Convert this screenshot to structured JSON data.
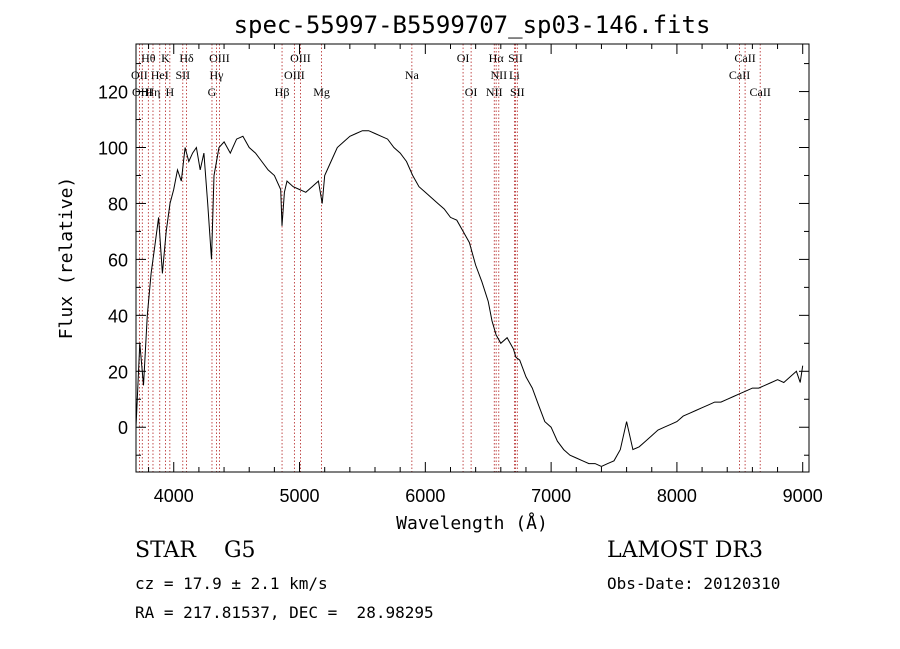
{
  "chart_data": {
    "type": "line",
    "title": "spec-55997-B5599707_sp03-146.fits",
    "xlabel": "Wavelength (Å)",
    "ylabel": "Flux (relative)",
    "xlim": [
      3700,
      9050
    ],
    "ylim": [
      -16,
      137
    ],
    "xticks": [
      4000,
      5000,
      6000,
      7000,
      8000,
      9000
    ],
    "yticks": [
      0,
      20,
      40,
      60,
      80,
      100,
      120
    ],
    "series": [
      {
        "name": "flux",
        "x": [
          3700,
          3730,
          3760,
          3790,
          3820,
          3850,
          3880,
          3910,
          3940,
          3970,
          4000,
          4030,
          4060,
          4090,
          4120,
          4150,
          4180,
          4210,
          4240,
          4270,
          4300,
          4320,
          4340,
          4360,
          4400,
          4450,
          4500,
          4550,
          4600,
          4650,
          4700,
          4750,
          4800,
          4850,
          4861,
          4880,
          4900,
          4950,
          5000,
          5050,
          5100,
          5150,
          5180,
          5200,
          5250,
          5300,
          5350,
          5400,
          5450,
          5500,
          5550,
          5600,
          5650,
          5700,
          5750,
          5800,
          5850,
          5900,
          5950,
          6000,
          6050,
          6100,
          6150,
          6200,
          6250,
          6300,
          6350,
          6400,
          6450,
          6500,
          6530,
          6563,
          6600,
          6650,
          6700,
          6720,
          6750,
          6800,
          6850,
          6900,
          6950,
          7000,
          7050,
          7100,
          7150,
          7200,
          7250,
          7300,
          7350,
          7400,
          7450,
          7500,
          7550,
          7600,
          7650,
          7700,
          7750,
          7800,
          7850,
          7900,
          7950,
          8000,
          8050,
          8100,
          8150,
          8200,
          8250,
          8300,
          8350,
          8400,
          8450,
          8500,
          8550,
          8600,
          8650,
          8700,
          8750,
          8800,
          8850,
          8900,
          8950,
          8980,
          9000
        ],
        "y": [
          0,
          30,
          15,
          40,
          55,
          65,
          75,
          55,
          70,
          80,
          85,
          92,
          88,
          100,
          95,
          98,
          100,
          92,
          98,
          80,
          60,
          90,
          95,
          100,
          102,
          98,
          103,
          104,
          100,
          98,
          95,
          92,
          90,
          85,
          72,
          84,
          88,
          86,
          85,
          84,
          86,
          88,
          80,
          90,
          95,
          100,
          102,
          104,
          105,
          106,
          106,
          105,
          104,
          103,
          100,
          98,
          95,
          90,
          86,
          84,
          82,
          80,
          78,
          75,
          74,
          70,
          66,
          58,
          52,
          45,
          38,
          33,
          30,
          32,
          28,
          25,
          24,
          18,
          14,
          8,
          2,
          0,
          -5,
          -8,
          -10,
          -11,
          -12,
          -13,
          -13,
          -14,
          -13,
          -12,
          -8,
          2,
          -8,
          -7,
          -5,
          -3,
          -1,
          0,
          1,
          2,
          4,
          5,
          6,
          7,
          8,
          9,
          9,
          10,
          11,
          12,
          13,
          14,
          14,
          15,
          16,
          17,
          16,
          18,
          20,
          16,
          22
        ]
      }
    ],
    "lines": [
      {
        "name": "Hθ",
        "x": 3798,
        "row": 1
      },
      {
        "name": "K",
        "x": 3934,
        "row": 1
      },
      {
        "name": "Hδ",
        "x": 4102,
        "row": 1
      },
      {
        "name": "OIII",
        "x": 4363,
        "row": 1
      },
      {
        "name": "OIII",
        "x": 5007,
        "row": 1
      },
      {
        "name": "OI",
        "x": 6300,
        "row": 1
      },
      {
        "name": "Hα",
        "x": 6563,
        "row": 1
      },
      {
        "name": "SII",
        "x": 6717,
        "row": 1
      },
      {
        "name": "CaII",
        "x": 8542,
        "row": 1
      },
      {
        "name": "OII",
        "x": 3727,
        "row": 2
      },
      {
        "name": "HeI",
        "x": 3889,
        "row": 2
      },
      {
        "name": "SII",
        "x": 4072,
        "row": 2
      },
      {
        "name": "Hγ",
        "x": 4340,
        "row": 2
      },
      {
        "name": "OIII",
        "x": 4959,
        "row": 2
      },
      {
        "name": "Na",
        "x": 5893,
        "row": 2
      },
      {
        "name": "NII",
        "x": 6584,
        "row": 2
      },
      {
        "name": "Li",
        "x": 6708,
        "row": 2
      },
      {
        "name": "CaII",
        "x": 8498,
        "row": 2
      },
      {
        "name": "OIII",
        "x": 3750,
        "row": 3
      },
      {
        "name": "Hη",
        "x": 3835,
        "row": 3
      },
      {
        "name": "H",
        "x": 3969,
        "row": 3
      },
      {
        "name": "G",
        "x": 4304,
        "row": 3
      },
      {
        "name": "Hβ",
        "x": 4861,
        "row": 3
      },
      {
        "name": "Mg",
        "x": 5175,
        "row": 3
      },
      {
        "name": "OI",
        "x": 6364,
        "row": 3
      },
      {
        "name": "NII",
        "x": 6548,
        "row": 3
      },
      {
        "name": "SII",
        "x": 6731,
        "row": 3
      },
      {
        "name": "CaII",
        "x": 8662,
        "row": 3
      }
    ]
  },
  "info": {
    "class_line": "STAR    G5",
    "survey": "LAMOST DR3",
    "cz": "cz = 17.9 ± 2.1 km/s",
    "obs_date": "Obs-Date: 20120310",
    "coords": "RA = 217.81537, DEC =  28.98295"
  },
  "colors": {
    "axes": "#000000",
    "line_marker": "#b22222",
    "spectrum": "#000000"
  }
}
